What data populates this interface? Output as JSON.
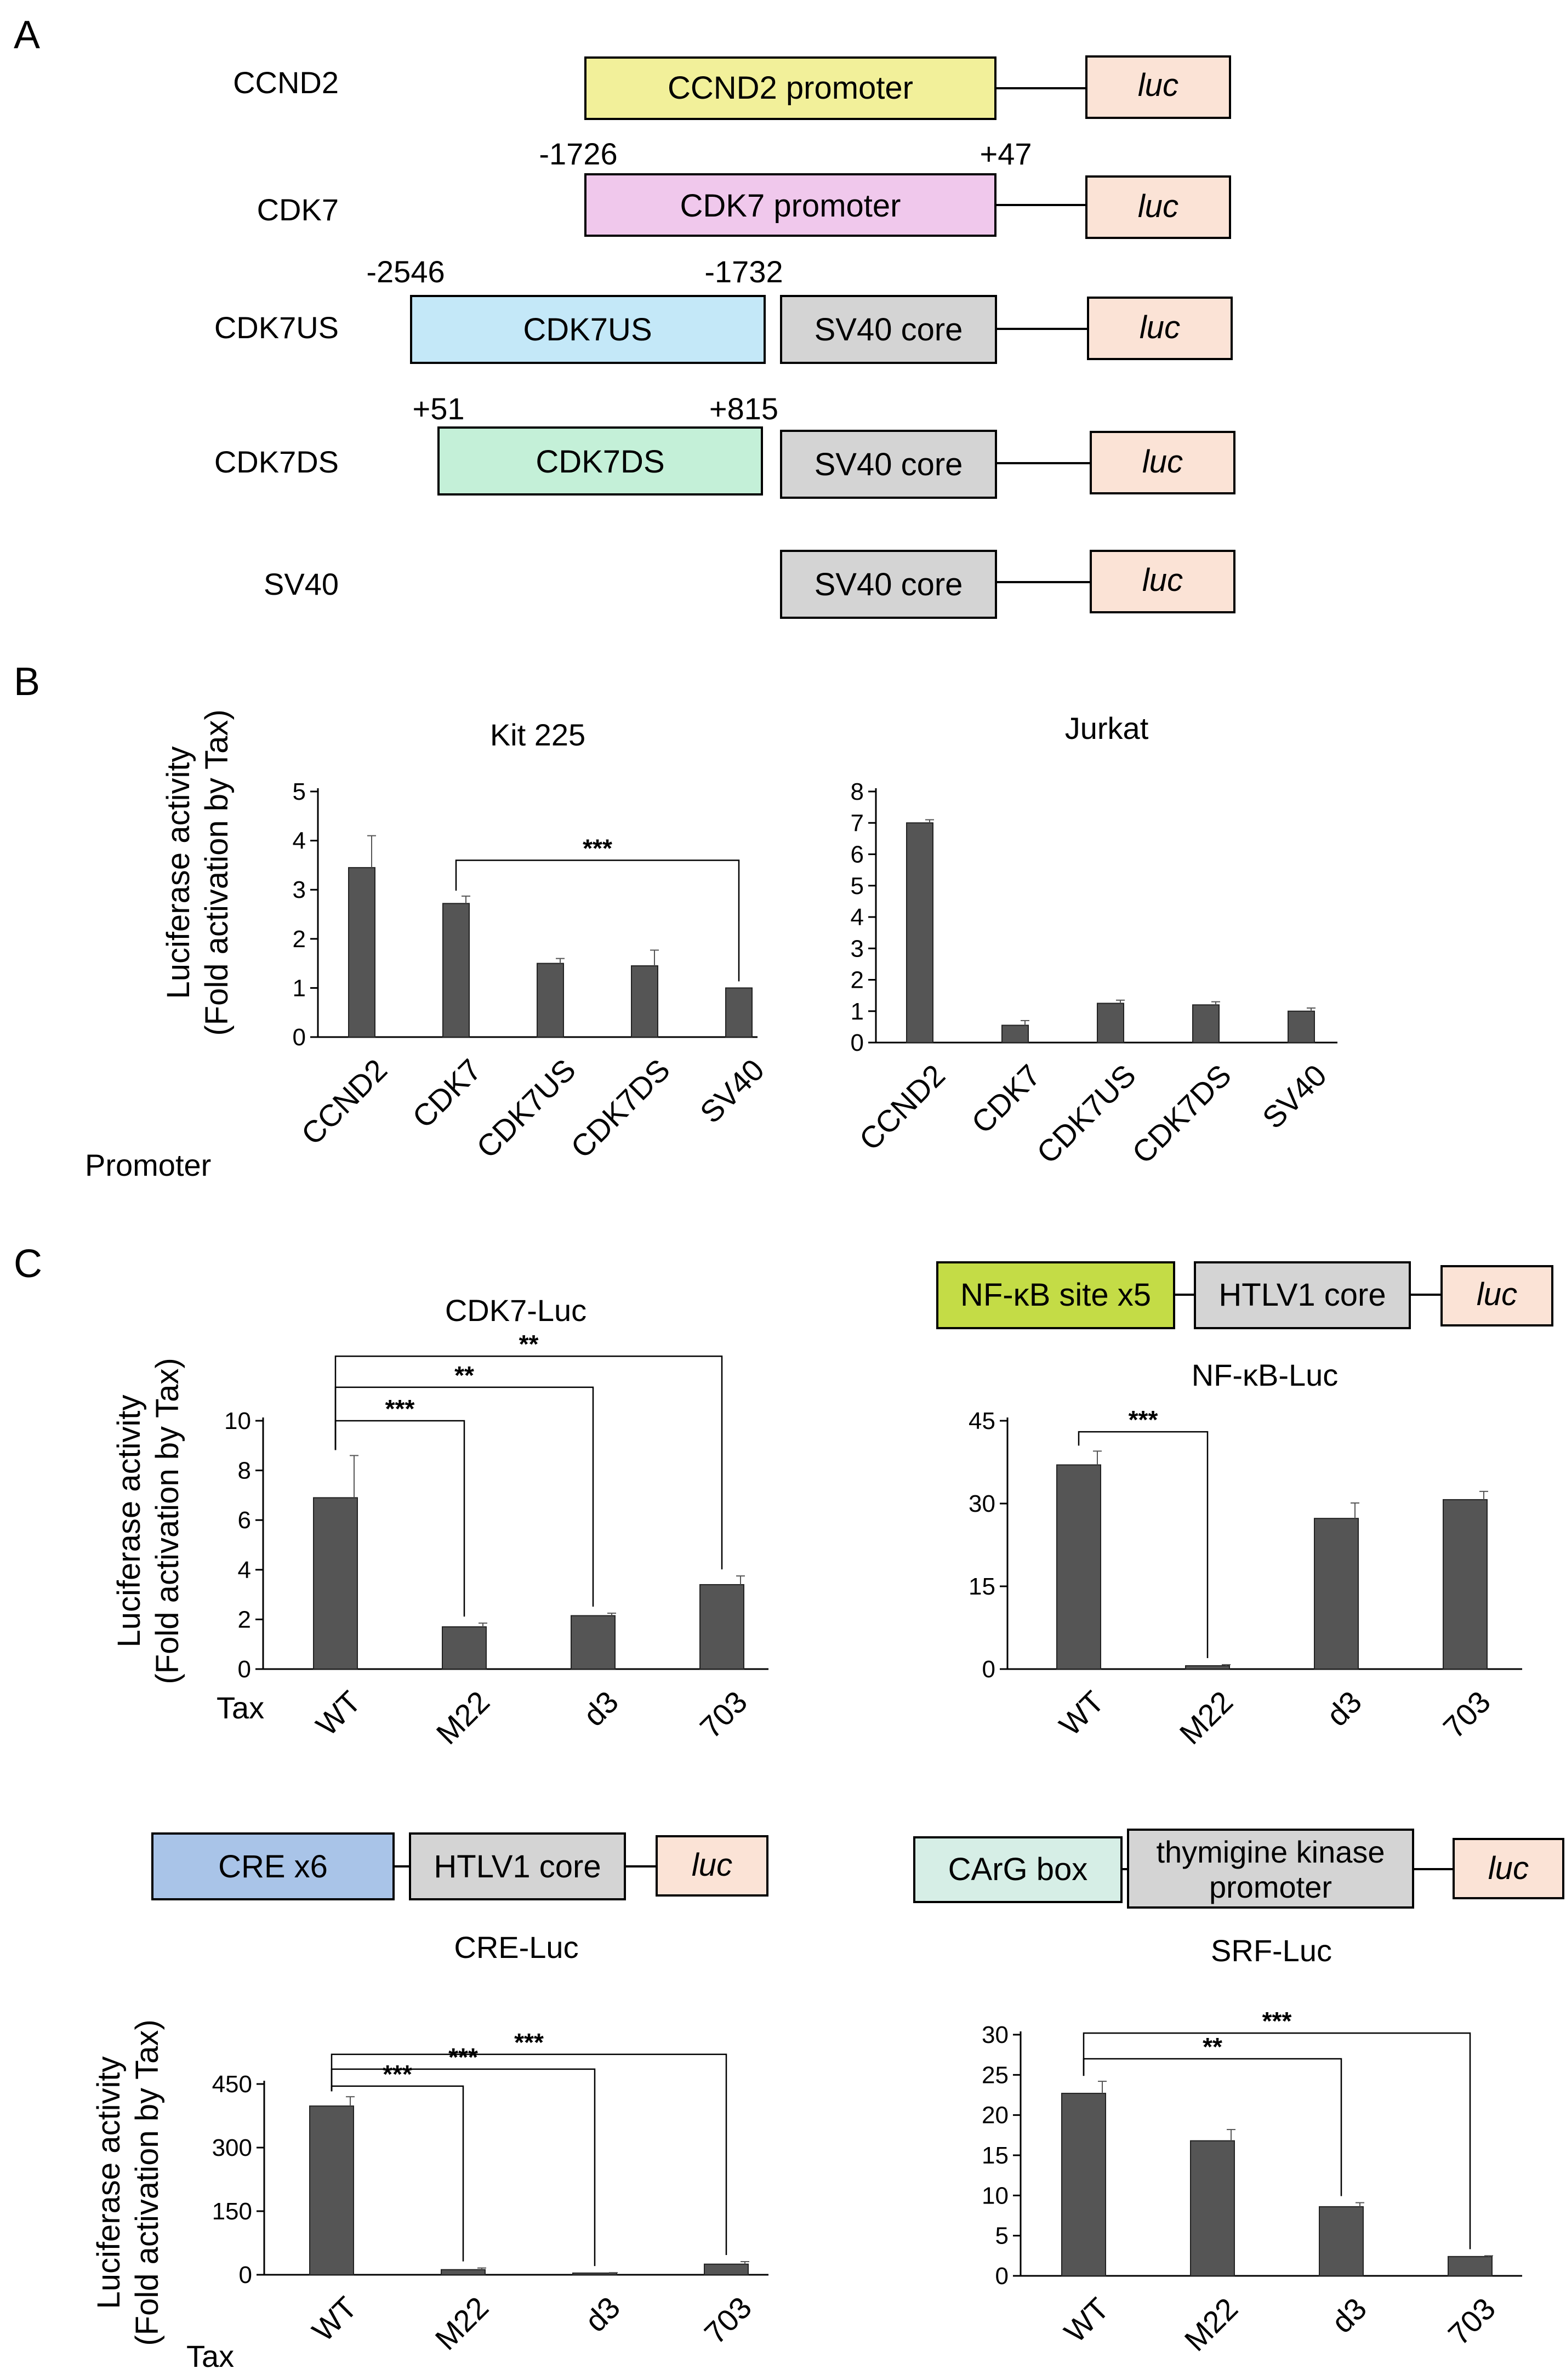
{
  "panels": {
    "A": "A",
    "B": "B",
    "C": "C"
  },
  "luc_label": "luc",
  "promoter_label": "Promoter",
  "tax_label": "Tax",
  "ylabel_line1": "Luciferase activity",
  "ylabel_line2": "(Fold activation by Tax)",
  "colors": {
    "bar": "#555555",
    "ccnd2": "#f2f09a",
    "cdk7": "#f0c8ec",
    "cdk7us": "#c4e8f8",
    "cdk7ds": "#c4f0d8",
    "sv40": "#d4d4d4",
    "luc": "#fbe3d6",
    "nfkb": "#c4dc46",
    "cre": "#a9c4e8",
    "carg": "#d6eee6"
  },
  "constructs": [
    {
      "name": "CCND2",
      "promoter": "CCND2 promoter",
      "core": "",
      "left_num": "",
      "right_num": "",
      "luc": "luc"
    },
    {
      "name": "CDK7",
      "promoter": "CDK7 promoter",
      "core": "",
      "left_num": "-1726",
      "right_num": "+47",
      "luc": "luc"
    },
    {
      "name": "CDK7US",
      "promoter": "CDK7US",
      "core": "SV40 core",
      "left_num": "-2546",
      "right_num": "-1732",
      "luc": "luc"
    },
    {
      "name": "CDK7DS",
      "promoter": "CDK7DS",
      "core": "SV40 core",
      "left_num": "+51",
      "right_num": "+815",
      "luc": "luc"
    },
    {
      "name": "SV40",
      "promoter": "",
      "core": "SV40 core",
      "left_num": "",
      "right_num": "",
      "luc": "luc"
    }
  ],
  "reporters": {
    "nfkb": {
      "element": "NF-κB site x5",
      "core": "HTLV1 core",
      "luc": "luc"
    },
    "cre": {
      "element": "CRE x6",
      "core": "HTLV1 core",
      "luc": "luc"
    },
    "srf": {
      "element": "CArG box",
      "core_line1": "thymigine kinase",
      "core_line2": "promoter",
      "luc": "luc"
    }
  },
  "chart_data": [
    {
      "id": "kit225",
      "type": "bar",
      "title": "Kit 225",
      "xlabel": "Promoter",
      "ylabel": "Luciferase activity (Fold activation by Tax)",
      "categories": [
        "CCND2",
        "CDK7",
        "CDK7US",
        "CDK7DS",
        "SV40"
      ],
      "values": [
        3.45,
        2.72,
        1.5,
        1.45,
        1.0
      ],
      "errors": [
        0.65,
        0.15,
        0.1,
        0.32,
        0.0
      ],
      "ylim": [
        0,
        5
      ],
      "yticks": [
        0,
        1,
        2,
        3,
        4,
        5
      ],
      "rotate_labels": true,
      "significance": [
        {
          "from": 1,
          "to": 4,
          "label": "***",
          "level": 3.6
        }
      ]
    },
    {
      "id": "jurkat",
      "type": "bar",
      "title": "Jurkat",
      "xlabel": "",
      "ylabel": "",
      "categories": [
        "CCND2",
        "CDK7",
        "CDK7US",
        "CDK7DS",
        "SV40"
      ],
      "values": [
        7.0,
        0.55,
        1.25,
        1.2,
        1.0
      ],
      "errors": [
        0.1,
        0.15,
        0.1,
        0.1,
        0.1
      ],
      "ylim": [
        0,
        8
      ],
      "yticks": [
        0,
        1,
        2,
        3,
        4,
        5,
        6,
        7,
        8
      ],
      "rotate_labels": true,
      "significance": []
    },
    {
      "id": "cdk7luc",
      "type": "bar",
      "title": "CDK7-Luc",
      "xlabel": "Tax",
      "ylabel": "Luciferase activity (Fold activation by Tax)",
      "categories": [
        "WT",
        "M22",
        "d3",
        "703"
      ],
      "values": [
        6.9,
        1.7,
        2.15,
        3.4
      ],
      "errors": [
        1.7,
        0.15,
        0.1,
        0.35
      ],
      "ylim": [
        0,
        10
      ],
      "yticks": [
        0,
        2,
        4,
        6,
        8,
        10
      ],
      "rotate_labels": true,
      "significance": [
        {
          "from": 0,
          "to": 1,
          "label": "***",
          "level": 10.0
        },
        {
          "from": 0,
          "to": 2,
          "label": "**",
          "level": 11.35
        },
        {
          "from": 0,
          "to": 3,
          "label": "**",
          "level": 12.6
        }
      ]
    },
    {
      "id": "nfkbluc",
      "type": "bar",
      "title": "NF-κB-Luc",
      "xlabel": "",
      "ylabel": "",
      "categories": [
        "WT",
        "M22",
        "d3",
        "703"
      ],
      "values": [
        37.0,
        0.6,
        27.3,
        30.7
      ],
      "errors": [
        2.5,
        0.2,
        2.8,
        1.5
      ],
      "ylim": [
        0,
        45
      ],
      "yticks": [
        0,
        15,
        30,
        45
      ],
      "rotate_labels": true,
      "significance": [
        {
          "from": 0,
          "to": 1,
          "label": "***",
          "level": 43.0
        }
      ]
    },
    {
      "id": "creluc",
      "type": "bar",
      "title": "CRE-Luc",
      "xlabel": "Tax",
      "ylabel": "Luciferase activity (Fold activation by Tax)",
      "categories": [
        "WT",
        "M22",
        "d3",
        "703"
      ],
      "values": [
        398,
        12,
        4,
        25
      ],
      "errors": [
        22,
        4,
        1,
        6
      ],
      "ylim": [
        0,
        450
      ],
      "yticks": [
        0,
        150,
        300,
        450
      ],
      "rotate_labels": true,
      "significance": [
        {
          "from": 0,
          "to": 1,
          "label": "***",
          "level": 445
        },
        {
          "from": 0,
          "to": 2,
          "label": "***",
          "level": 485
        },
        {
          "from": 0,
          "to": 3,
          "label": "***",
          "level": 520
        }
      ]
    },
    {
      "id": "srfluc",
      "type": "bar",
      "title": "SRF-Luc",
      "xlabel": "",
      "ylabel": "",
      "categories": [
        "WT",
        "M22",
        "d3",
        "703"
      ],
      "values": [
        22.7,
        16.8,
        8.6,
        2.4
      ],
      "errors": [
        1.5,
        1.4,
        0.5,
        0.1
      ],
      "ylim": [
        0,
        30
      ],
      "yticks": [
        0,
        5,
        10,
        15,
        20,
        25,
        30
      ],
      "rotate_labels": true,
      "significance": [
        {
          "from": 0,
          "to": 2,
          "label": "**",
          "level": 27.0
        },
        {
          "from": 0,
          "to": 3,
          "label": "***",
          "level": 30.2
        }
      ]
    }
  ]
}
